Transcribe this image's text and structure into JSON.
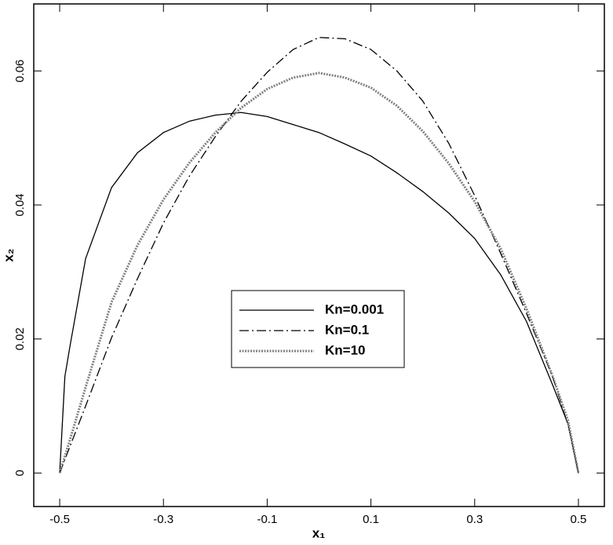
{
  "chart_data": {
    "type": "line",
    "xlabel": "x₁",
    "ylabel": "x₂",
    "x": [
      -0.5,
      -0.49,
      -0.48,
      -0.45,
      -0.4,
      -0.35,
      -0.3,
      -0.25,
      -0.2,
      -0.15,
      -0.1,
      -0.05,
      0,
      0.05,
      0.1,
      0.15,
      0.2,
      0.25,
      0.3,
      0.35,
      0.4,
      0.45,
      0.48,
      0.5
    ],
    "series": [
      {
        "name": "Kn=0.001",
        "color": "#000000",
        "dash": "solid",
        "values": [
          0,
          0.0144,
          0.019,
          0.032,
          0.0426,
          0.0478,
          0.0508,
          0.0525,
          0.0534,
          0.0538,
          0.0532,
          0.052,
          0.0508,
          0.0491,
          0.0473,
          0.0448,
          0.042,
          0.0388,
          0.035,
          0.0296,
          0.0226,
          0.0132,
          0.0073,
          0
        ]
      },
      {
        "name": "Kn=0.1",
        "color": "#000000",
        "dash": "dashdot",
        "values": [
          0,
          0.002,
          0.004,
          0.01,
          0.0202,
          0.029,
          0.0373,
          0.0443,
          0.0502,
          0.0555,
          0.0598,
          0.0632,
          0.065,
          0.0648,
          0.0632,
          0.06,
          0.0555,
          0.0492,
          0.0414,
          0.0328,
          0.0238,
          0.0144,
          0.0072,
          0
        ]
      },
      {
        "name": "Kn=10",
        "color": "#808080",
        "dash": "dot",
        "values": [
          0,
          0.0025,
          0.005,
          0.0128,
          0.0255,
          0.034,
          0.0408,
          0.0463,
          0.0508,
          0.0545,
          0.0573,
          0.059,
          0.0597,
          0.059,
          0.0575,
          0.0548,
          0.051,
          0.0462,
          0.0405,
          0.0335,
          0.0245,
          0.0145,
          0.0078,
          0
        ]
      }
    ],
    "xlim": [
      -0.55,
      0.55
    ],
    "ylim": [
      -0.005,
      0.07
    ],
    "xticks": [
      -0.5,
      -0.3,
      -0.1,
      0.1,
      0.3,
      0.5
    ],
    "yticks": [
      0,
      0.02,
      0.04,
      0.06
    ],
    "grid": false
  }
}
